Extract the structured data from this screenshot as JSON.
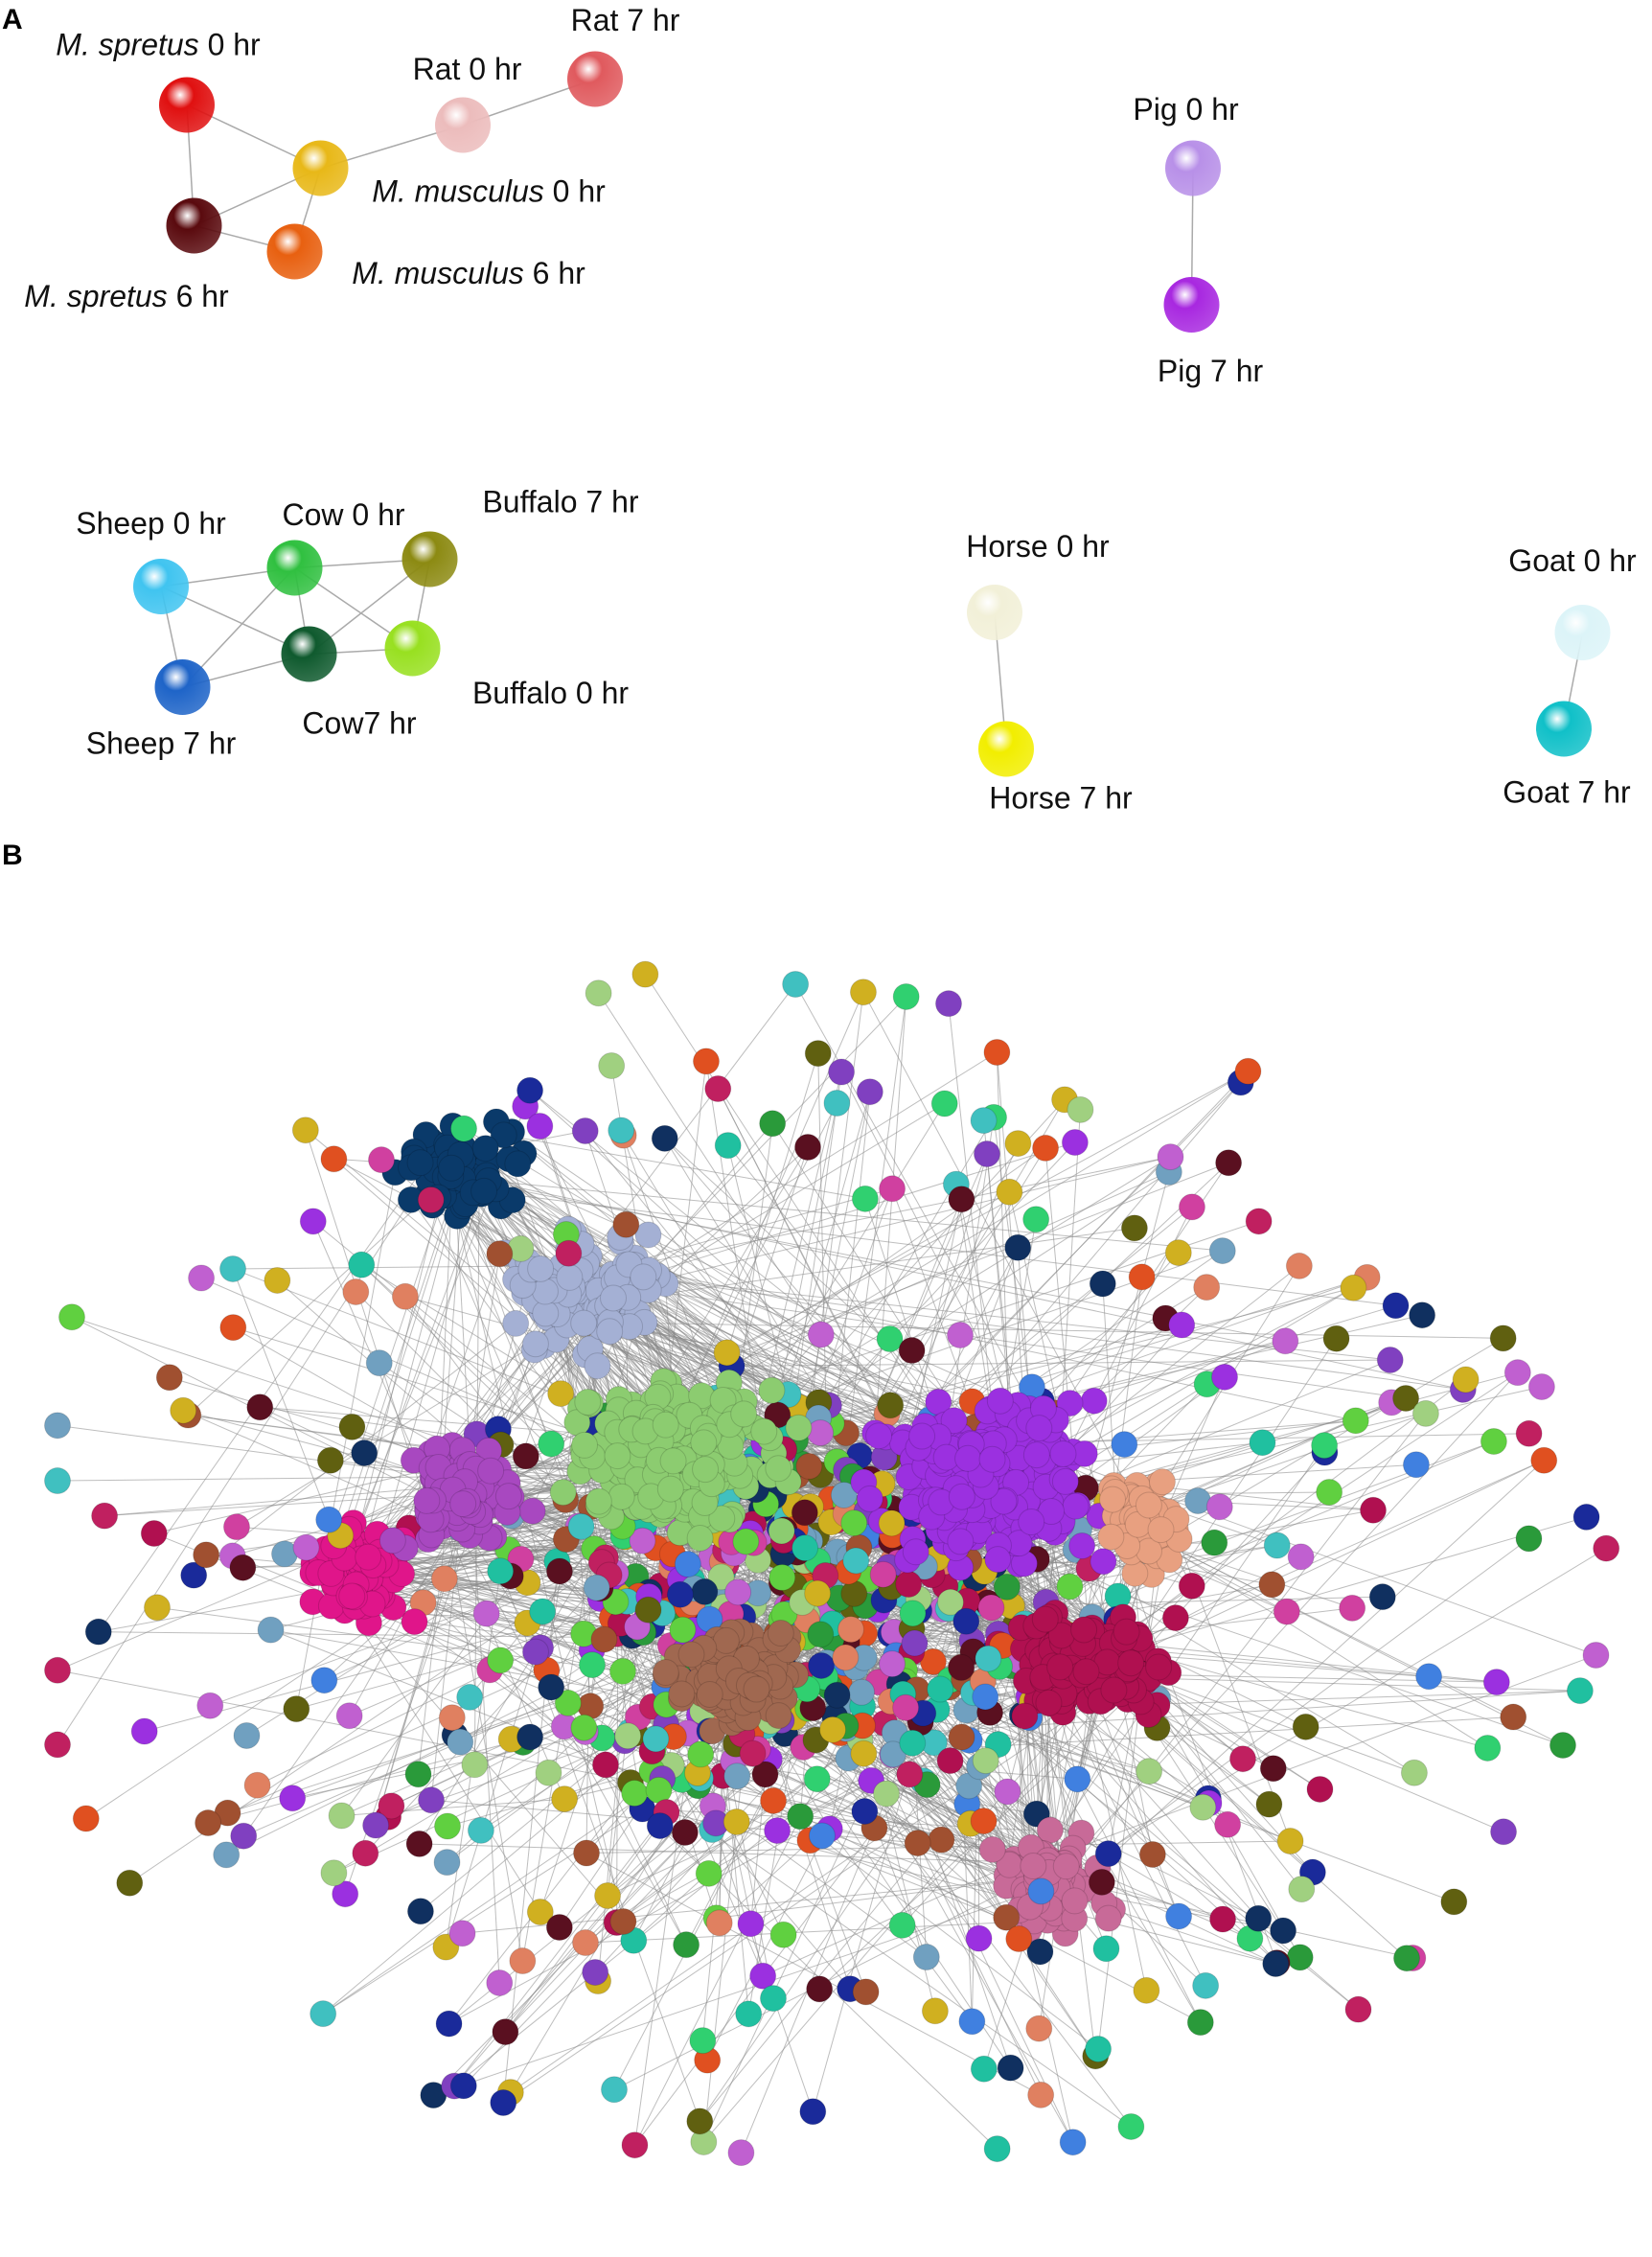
{
  "panels": {
    "a": "A",
    "b": "B"
  },
  "nodes": [
    {
      "italic": "M. spretus",
      "label": "0 hr",
      "color": "#e01010"
    },
    {
      "italic": "M. spretus",
      "label": "6 hr",
      "color": "#5a0a0e"
    },
    {
      "italic": "M. musculus",
      "label": "0 hr",
      "color": "#e8b818"
    },
    {
      "italic": "M. musculus",
      "label": "6 hr",
      "color": "#e86010"
    },
    {
      "label": "Rat 0 hr",
      "color": "#ecbcbc"
    },
    {
      "label": "Rat 7 hr",
      "color": "#e05a5e"
    },
    {
      "label": "Pig 0 hr",
      "color": "#b890e8"
    },
    {
      "label": "Pig 7 hr",
      "color": "#a828e0"
    },
    {
      "label": "Sheep 0 hr",
      "color": "#40c4f0"
    },
    {
      "label": "Sheep 7 hr",
      "color": "#1e64c8"
    },
    {
      "label": "Cow 0 hr",
      "color": "#30c040"
    },
    {
      "label": "Cow7 hr",
      "color": "#0f5a2e"
    },
    {
      "label": "Buffalo 7 hr",
      "color": "#8c8a12"
    },
    {
      "label": "Buffalo 0 hr",
      "color": "#98e020"
    },
    {
      "label": "Horse 0 hr",
      "color": "#f2f0d8"
    },
    {
      "label": "Horse 7 hr",
      "color": "#f2ee00"
    },
    {
      "label": "Goat 0 hr",
      "color": "#dcf4f8"
    },
    {
      "label": "Goat 7 hr",
      "color": "#10c0c8"
    }
  ]
}
